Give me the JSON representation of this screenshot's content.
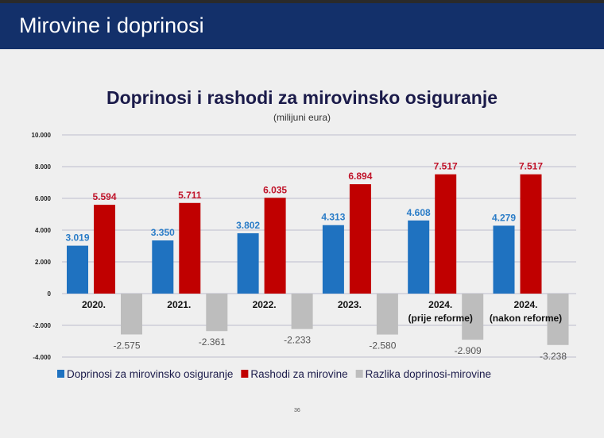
{
  "header": {
    "title": "Mirovine i doprinosi"
  },
  "footer": {
    "page_number": "36"
  },
  "chart_data": {
    "type": "bar",
    "title": "Doprinosi i rashodi za mirovinsko osiguranje",
    "subtitle": "(milijuni eura)",
    "categories": [
      [
        "2020."
      ],
      [
        "2021."
      ],
      [
        "2022."
      ],
      [
        "2023."
      ],
      [
        "2024.",
        "(prije reforme)"
      ],
      [
        "2024.",
        "(nakon reforme)"
      ]
    ],
    "series": [
      {
        "name": "Doprinosi za mirovinsko osiguranje",
        "color": "#1f72c0",
        "label_color": "#2a7cc7",
        "values": [
          3019,
          3350,
          3802,
          4313,
          4608,
          4279
        ],
        "labels": [
          "3.019",
          "3.350",
          "3.802",
          "4.313",
          "4.608",
          "4.279"
        ]
      },
      {
        "name": "Rashodi za mirovine",
        "color": "#c00000",
        "label_color": "#c0142a",
        "values": [
          5594,
          5711,
          6035,
          6894,
          7517,
          7517
        ],
        "labels": [
          "5.594",
          "5.711",
          "6.035",
          "6.894",
          "7.517",
          "7.517"
        ]
      },
      {
        "name": "Razlika doprinosi-mirovine",
        "color": "#bdbdbd",
        "label_color": "#555555",
        "values": [
          -2575,
          -2361,
          -2233,
          -2580,
          -2909,
          -3238
        ],
        "labels": [
          "-2.575",
          "-2.361",
          "-2.233",
          "-2.580",
          "-2.909",
          "-3.238"
        ]
      }
    ],
    "ylim": [
      -4000,
      10000
    ],
    "yticks": [
      10000,
      8000,
      6000,
      4000,
      2000,
      0,
      -2000,
      -4000
    ],
    "ytick_labels": [
      "10.000",
      "8.000",
      "6.000",
      "4.000",
      "2.000",
      "0",
      "-2.000",
      "-4.000"
    ],
    "grid": true,
    "legend": "bottom"
  }
}
